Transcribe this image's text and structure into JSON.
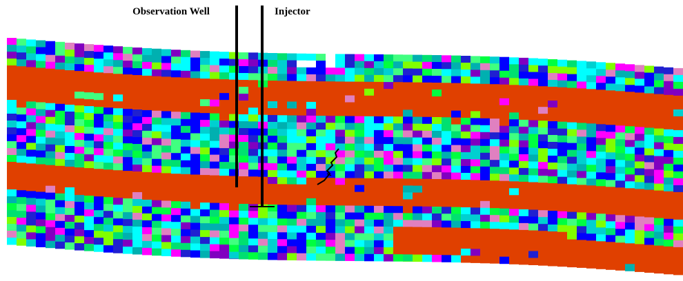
{
  "labels": {
    "observation_well": "Observation Well",
    "injector": "Injector"
  }
}
